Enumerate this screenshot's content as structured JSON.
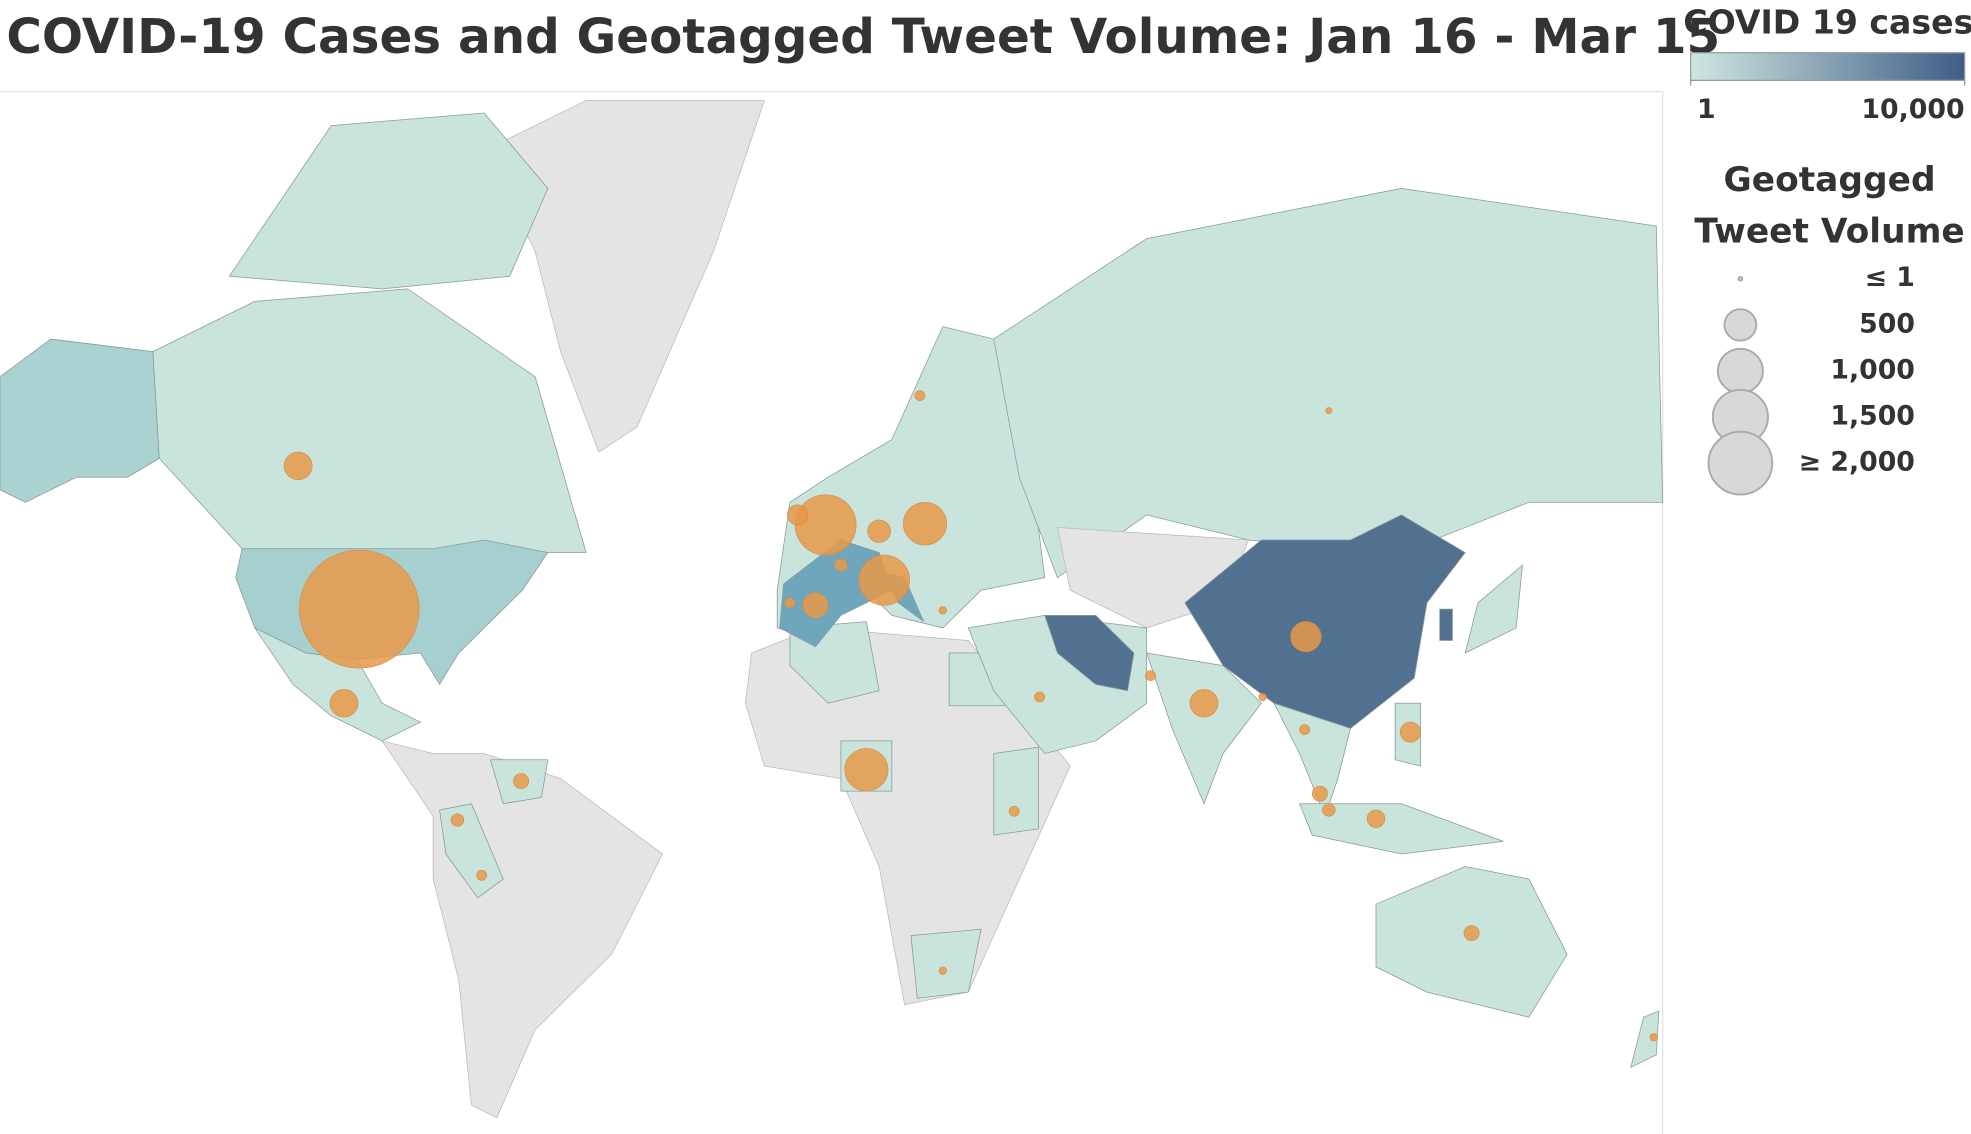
{
  "title": "COVID-19 Cases and Geotagged Tweet Volume: Jan 16 - Mar 15",
  "color_legend": {
    "title": "COVID 19 cases",
    "colors": [
      "#cfe7e1",
      "#3f5d87"
    ],
    "log_scale": true,
    "ticks": [
      {
        "value": 1,
        "label": "1"
      },
      {
        "value": 10000,
        "label": "10,000"
      }
    ]
  },
  "size_legend": {
    "title": "Geotagged Tweet Volume",
    "items": [
      {
        "value": 1,
        "label": "≤ 1"
      },
      {
        "value": 500,
        "label": "500"
      },
      {
        "value": 1000,
        "label": "1,000"
      },
      {
        "value": 1500,
        "label": "1,500"
      },
      {
        "value": 2000,
        "label": "≥ 2,000"
      }
    ]
  },
  "bubbles": {
    "color": "#e8994a",
    "values": [
      7070,
      387,
      387,
      1843,
      205,
      320,
      51,
      259,
      925,
      1280,
      925,
      461,
      387,
      205,
      115,
      80,
      157,
      115,
      115,
      80,
      51,
      51,
      29,
      51,
      51,
      51,
      29,
      20,
      80,
      29,
      29,
      51
    ]
  }
}
